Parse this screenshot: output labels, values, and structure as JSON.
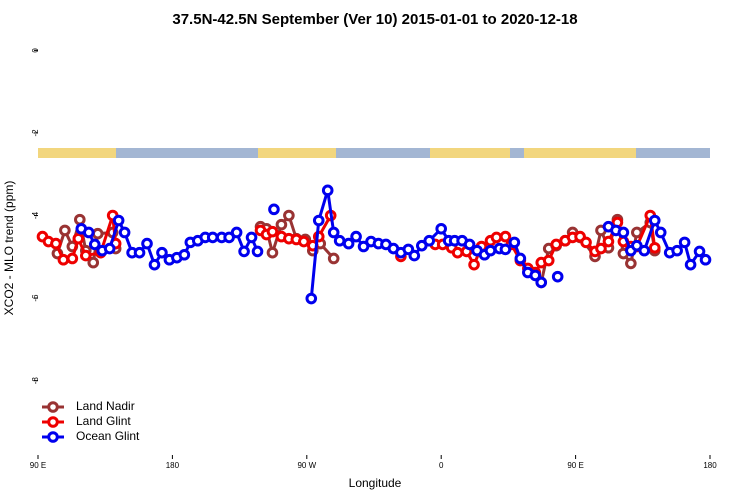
{
  "chart_data": {
    "type": "line",
    "title": "37.5N-42.5N September (Ver 10)   2015-01-01 to 2020-12-18",
    "x_label": "Longitude",
    "y_label": "XCO2 - MLO trend (ppm)",
    "xlim": [
      90,
      540
    ],
    "xticks": [
      {
        "value": 90,
        "label": "90 E"
      },
      {
        "value": 180,
        "label": "180"
      },
      {
        "value": 270,
        "label": "90 W"
      },
      {
        "value": 360,
        "label": "0"
      },
      {
        "value": 450,
        "label": "90 E"
      },
      {
        "value": 540,
        "label": "180"
      }
    ],
    "ylim": [
      -9.8,
      0.3
    ],
    "yticks": [
      0,
      -2,
      -4,
      -6,
      -8
    ],
    "legend": "lower left",
    "series": [
      {
        "name": "Land Nadir",
        "color": "#993333",
        "x": [
          103,
          108,
          113,
          118,
          122,
          127,
          130,
          140,
          142,
          null,
          239,
          243,
          247,
          253,
          258,
          263,
          269,
          274,
          279,
          288,
          null,
          427,
          432,
          437,
          443,
          448,
          453,
          463,
          467,
          472,
          478,
          482,
          487,
          491,
          500,
          503
        ],
        "values": [
          -4.92,
          -4.36,
          -4.75,
          -4.1,
          -4.85,
          -5.14,
          -4.44,
          -4.41,
          -4.8,
          null,
          -4.27,
          -4.32,
          -4.9,
          -4.22,
          -4.0,
          -4.56,
          -4.58,
          -4.85,
          -4.68,
          -5.04,
          null,
          -5.62,
          -4.8,
          -4.73,
          -4.61,
          -4.41,
          -4.53,
          -4.99,
          -4.36,
          -4.78,
          -4.1,
          -4.92,
          -5.16,
          -4.41,
          -4.17,
          -4.85
        ]
      },
      {
        "name": "Land Glint",
        "color": "#ee0000",
        "x": [
          93,
          97,
          102,
          107,
          113,
          117,
          122,
          132,
          140,
          142,
          null,
          239,
          243,
          247,
          253,
          258,
          263,
          268,
          274,
          278,
          286,
          null,
          333,
          null,
          356,
          361,
          367,
          371,
          377,
          382,
          387,
          393,
          397,
          403,
          407,
          413,
          418,
          423,
          427,
          432,
          437,
          443,
          448,
          453,
          457,
          463,
          467,
          472,
          478,
          482,
          487,
          491,
          500,
          503
        ],
        "values": [
          -4.51,
          -4.63,
          -4.68,
          -5.07,
          -5.04,
          -4.56,
          -4.97,
          -4.9,
          -4.0,
          -4.68,
          null,
          -4.36,
          -4.46,
          -4.39,
          -4.51,
          -4.56,
          -4.58,
          -4.63,
          -4.73,
          -4.51,
          -4.0,
          null,
          -4.99,
          null,
          -4.7,
          -4.7,
          -4.78,
          -4.9,
          -4.87,
          -5.19,
          -4.75,
          -4.61,
          -4.53,
          -4.51,
          -4.7,
          -5.09,
          -5.28,
          -5.38,
          -5.14,
          -5.09,
          -4.7,
          -4.61,
          -4.53,
          -4.51,
          -4.65,
          -4.87,
          -4.8,
          -4.63,
          -4.17,
          -4.63,
          -4.75,
          -4.75,
          -4.0,
          -4.78
        ]
      },
      {
        "name": "Ocean Glint",
        "color": "#0000ee",
        "x": [
          119,
          124,
          128,
          133,
          138,
          144,
          148,
          153,
          158,
          163,
          168,
          173,
          178,
          183,
          188,
          192,
          197,
          202,
          207,
          213,
          218,
          223,
          228,
          233,
          237,
          null,
          248,
          null,
          273,
          278,
          284,
          288,
          292,
          298,
          303,
          308,
          313,
          318,
          323,
          328,
          333,
          338,
          342,
          347,
          352,
          360,
          365,
          369,
          374,
          379,
          384,
          389,
          393,
          399,
          403,
          409,
          413,
          418,
          423,
          427,
          null,
          438,
          null,
          472,
          477,
          482,
          487,
          491,
          496,
          503,
          507,
          513,
          518,
          523,
          527,
          533,
          537
        ],
        "values": [
          -4.32,
          -4.41,
          -4.7,
          -4.85,
          -4.8,
          -4.12,
          -4.41,
          -4.9,
          -4.9,
          -4.68,
          -5.19,
          -4.9,
          -5.07,
          -5.02,
          -4.95,
          -4.65,
          -4.61,
          -4.53,
          -4.53,
          -4.53,
          -4.53,
          -4.41,
          -4.87,
          -4.53,
          -4.87,
          null,
          -3.85,
          null,
          -6.01,
          -4.12,
          -3.39,
          -4.41,
          -4.61,
          -4.68,
          -4.51,
          -4.75,
          -4.63,
          -4.68,
          -4.7,
          -4.8,
          -4.9,
          -4.82,
          -4.97,
          -4.73,
          -4.61,
          -4.32,
          -4.61,
          -4.61,
          -4.61,
          -4.7,
          -4.85,
          -4.95,
          -4.85,
          -4.8,
          -4.82,
          -4.65,
          -5.04,
          -5.38,
          -5.45,
          -5.62,
          null,
          -5.48,
          null,
          -4.27,
          -4.36,
          -4.41,
          -4.85,
          -4.73,
          -4.85,
          -4.12,
          -4.41,
          -4.9,
          -4.85,
          -4.65,
          -5.19,
          -4.87,
          -5.07
        ]
      }
    ]
  }
}
